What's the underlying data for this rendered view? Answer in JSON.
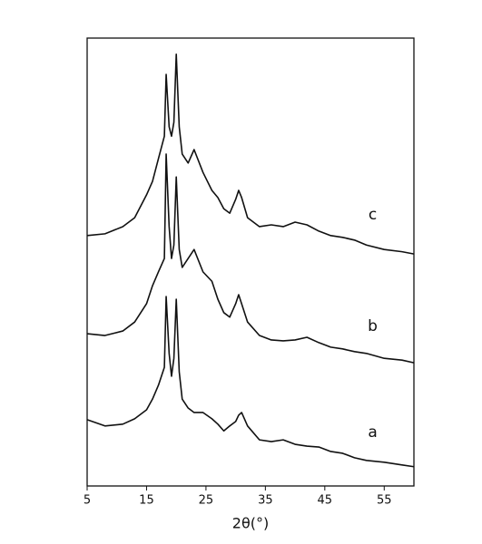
{
  "chart_data": {
    "type": "line",
    "x_label": "2θ(°)",
    "x": [
      5,
      8,
      11,
      13,
      15,
      16,
      17,
      18,
      18.3,
      18.8,
      19.2,
      19.6,
      20,
      20.5,
      21,
      22,
      23,
      24.5,
      26,
      27,
      28,
      29,
      30,
      30.5,
      31,
      32,
      34,
      36,
      38,
      40,
      42,
      44,
      46,
      48,
      50,
      52,
      55,
      58,
      60
    ],
    "xlim": [
      5,
      60
    ],
    "xticks": [
      5,
      15,
      25,
      35,
      45,
      55
    ],
    "ylim": [
      0,
      100
    ],
    "series": [
      {
        "name": "a",
        "color": "#111111",
        "values": [
          14.8,
          13.4,
          13.8,
          15.0,
          17.0,
          19.4,
          22.5,
          26.5,
          42.3,
          29.6,
          24.5,
          28.5,
          41.7,
          25.5,
          19.4,
          17.4,
          16.4,
          16.4,
          15.0,
          13.8,
          12.3,
          13.4,
          14.4,
          15.8,
          16.4,
          13.4,
          10.3,
          9.9,
          10.3,
          9.3,
          8.9,
          8.7,
          7.7,
          7.3,
          6.3,
          5.7,
          5.3,
          4.7,
          4.3
        ]
      },
      {
        "name": "b",
        "color": "#111111",
        "values": [
          34.0,
          33.6,
          34.6,
          36.6,
          40.7,
          44.7,
          47.8,
          50.8,
          74.1,
          57.9,
          50.8,
          53.8,
          69.0,
          52.8,
          48.8,
          50.8,
          52.8,
          47.8,
          45.7,
          41.7,
          38.7,
          37.7,
          40.7,
          42.7,
          40.7,
          36.6,
          33.6,
          32.6,
          32.4,
          32.6,
          33.2,
          32.0,
          31.0,
          30.6,
          30.0,
          29.6,
          28.5,
          28.1,
          27.5
        ]
      },
      {
        "name": "c",
        "color": "#111111",
        "values": [
          55.9,
          56.3,
          57.9,
          59.9,
          65.0,
          68.0,
          73.1,
          78.1,
          91.9,
          80.2,
          78.1,
          81.2,
          96.4,
          80.2,
          74.1,
          72.1,
          75.1,
          70.0,
          66.0,
          64.4,
          61.9,
          60.9,
          64.0,
          66.0,
          64.4,
          59.9,
          57.9,
          58.3,
          57.9,
          58.9,
          58.3,
          56.9,
          55.9,
          55.5,
          54.9,
          53.8,
          52.8,
          52.3,
          51.8
        ]
      }
    ]
  }
}
